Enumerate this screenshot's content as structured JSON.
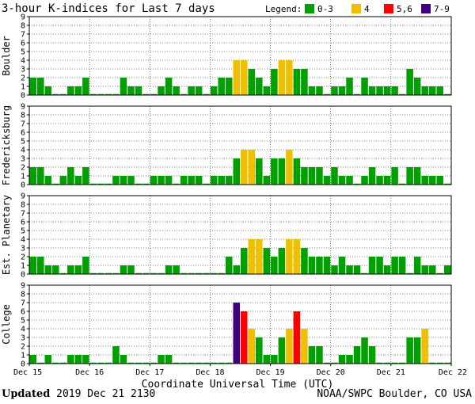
{
  "chart_data": {
    "type": "bar",
    "title": "3-hour K-indices for Last 7 days",
    "legend_title": "Legend:",
    "legend": [
      {
        "label": "0-3",
        "color": "#00a000"
      },
      {
        "label": "4",
        "color": "#f0c000"
      },
      {
        "label": "5,6",
        "color": "#ff0000"
      },
      {
        "label": "7-9",
        "color": "#400080"
      }
    ],
    "xlabel": "Coordinate Universal Time (UTC)",
    "x_tick_labels": [
      "Dec 15",
      "Dec 16",
      "Dec 17",
      "Dec 18",
      "Dec 19",
      "Dec 20",
      "Dec 21",
      "Dec 22"
    ],
    "y_tick_labels": [
      "0",
      "1",
      "2",
      "3",
      "4",
      "5",
      "6",
      "7",
      "8",
      "9"
    ],
    "ylim": [
      0,
      9
    ],
    "grid": true,
    "legend_position": "top-right",
    "intervals_per_day": 8,
    "series": [
      {
        "name": "Boulder",
        "values": [
          2,
          2,
          1,
          0,
          0,
          1,
          1,
          2,
          0,
          0,
          0,
          0,
          2,
          1,
          1,
          0,
          0,
          1,
          2,
          1,
          0,
          1,
          1,
          0,
          1,
          2,
          2,
          4,
          4,
          3,
          2,
          1,
          3,
          4,
          4,
          3,
          3,
          1,
          1,
          0,
          1,
          1,
          2,
          0,
          2,
          1,
          1,
          1,
          1,
          0,
          3,
          2,
          1,
          1,
          1,
          0
        ]
      },
      {
        "name": "Fredericksburg",
        "values": [
          2,
          2,
          1,
          0,
          1,
          2,
          1,
          2,
          0,
          0,
          0,
          1,
          1,
          1,
          0,
          0,
          1,
          1,
          1,
          0,
          1,
          1,
          1,
          0,
          1,
          1,
          1,
          3,
          4,
          4,
          3,
          1,
          3,
          3,
          4,
          3,
          2,
          2,
          2,
          1,
          2,
          1,
          1,
          0,
          1,
          2,
          1,
          1,
          2,
          0,
          2,
          2,
          1,
          1,
          1,
          0
        ]
      },
      {
        "name": "Est. Planetary",
        "values": [
          2,
          2,
          1,
          1,
          0,
          1,
          1,
          2,
          0,
          0,
          0,
          0,
          1,
          1,
          0,
          0,
          0,
          0,
          1,
          1,
          0,
          0,
          0,
          0,
          0,
          0,
          2,
          1,
          3,
          4,
          4,
          3,
          2,
          3,
          4,
          4,
          3,
          2,
          2,
          2,
          1,
          2,
          1,
          1,
          0,
          2,
          2,
          1,
          2,
          2,
          0,
          2,
          1,
          1,
          0,
          1
        ]
      },
      {
        "name": "College",
        "values": [
          1,
          0,
          1,
          0,
          0,
          1,
          1,
          1,
          0,
          0,
          0,
          2,
          1,
          0,
          0,
          0,
          0,
          1,
          1,
          0,
          0,
          0,
          0,
          0,
          0,
          0,
          0,
          7,
          6,
          4,
          3,
          1,
          1,
          3,
          4,
          6,
          4,
          2,
          2,
          0,
          0,
          1,
          1,
          2,
          3,
          2,
          0,
          0,
          0,
          0,
          3,
          3,
          4,
          0,
          0,
          0
        ]
      }
    ]
  },
  "footer": {
    "updated_label": "Updated",
    "updated_value": "2019 Dec 21 2130",
    "source": "NOAA/SWPC Boulder, CO USA"
  }
}
